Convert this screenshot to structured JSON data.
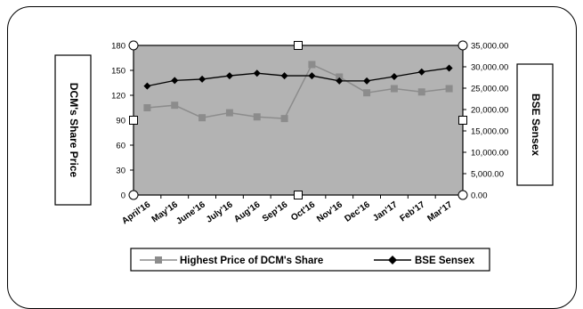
{
  "chart_data": {
    "type": "line",
    "categories": [
      "April'16",
      "May'16",
      "June'16",
      "July'16",
      "Aug'16",
      "Sep'16",
      "Oct'16",
      "Nov'16",
      "Dec'16",
      "Jan'17",
      "Feb'17",
      "Mar'17"
    ],
    "series": [
      {
        "name": "Highest Price of DCM's Share",
        "axis": "left",
        "color": "#8c8c8c",
        "marker": "square",
        "values": [
          105,
          108,
          93,
          99,
          94,
          92,
          157,
          142,
          123,
          128,
          124,
          128
        ]
      },
      {
        "name": "BSE Sensex",
        "axis": "right",
        "color": "#000000",
        "marker": "diamond",
        "values": [
          25500,
          26800,
          27100,
          27900,
          28500,
          27900,
          27900,
          26700,
          26700,
          27700,
          28800,
          29700
        ]
      }
    ],
    "ylabel": "DCM's Share Price",
    "y2label": "BSE Sensex",
    "ylim": [
      0,
      180
    ],
    "y2lim": [
      0,
      35000
    ],
    "yticks": [
      "0",
      "30",
      "60",
      "90",
      "120",
      "150",
      "180"
    ],
    "y2ticks": [
      "0.00",
      "5,000.00",
      "10,000.00",
      "15,000.00",
      "20,000.00",
      "25,000.00",
      "30,000.00",
      "35,000.00"
    ],
    "plot_background": "#b3b3b3",
    "grid": false,
    "legend": "bottom"
  }
}
